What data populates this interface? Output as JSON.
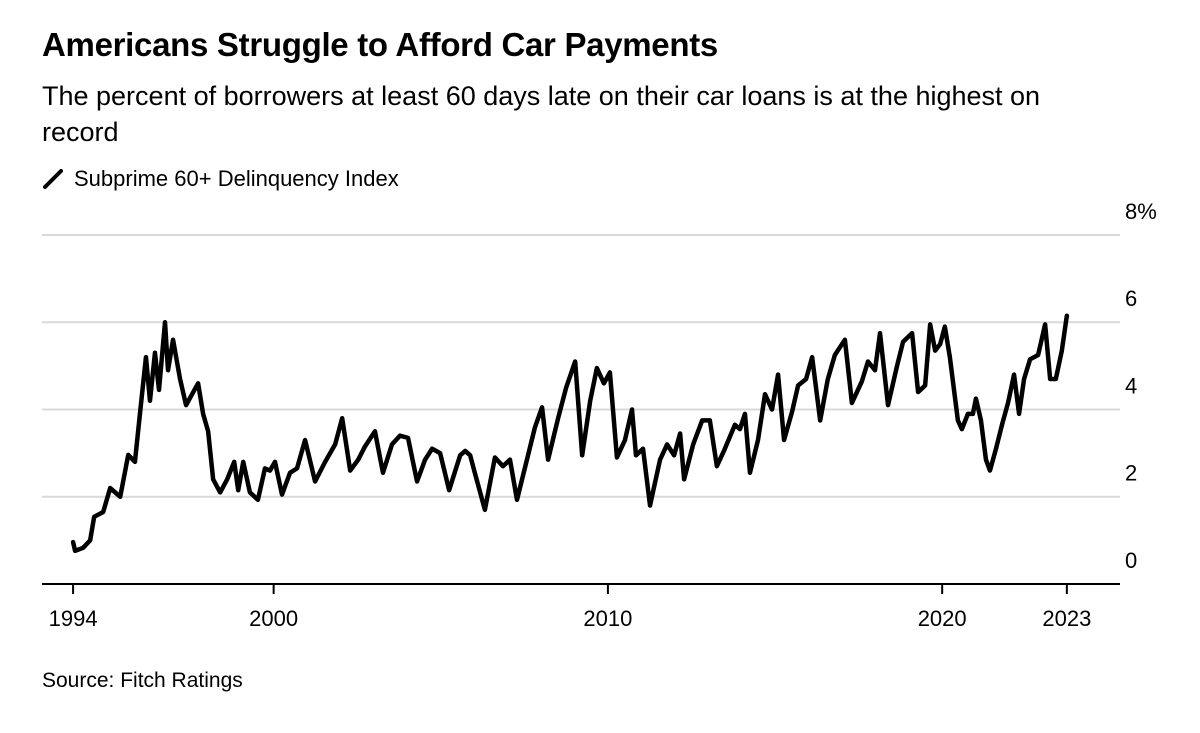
{
  "chart_data": {
    "type": "line",
    "title": "Americans Struggle to Afford Car Payments",
    "subtitle": "The percent of borrowers at least 60 days late on their car loans is at the highest on record",
    "source": "Source: Fitch Ratings",
    "x": [
      1994.0,
      1994.06,
      1994.3,
      1994.51,
      1994.63,
      1994.9,
      1995.11,
      1995.41,
      1995.65,
      1995.85,
      1996.0,
      1996.18,
      1996.3,
      1996.45,
      1996.57,
      1996.75,
      1996.84,
      1996.99,
      1997.2,
      1997.38,
      1997.74,
      1997.89,
      1998.04,
      1998.19,
      1998.4,
      1998.61,
      1998.82,
      1998.94,
      1999.09,
      1999.29,
      1999.53,
      1999.74,
      1999.89,
      2000.04,
      2000.25,
      2000.49,
      2000.7,
      2000.94,
      2001.24,
      2001.54,
      2001.84,
      2002.05,
      2002.29,
      2002.53,
      2002.73,
      2003.03,
      2003.27,
      2003.54,
      2003.78,
      2004.02,
      2004.29,
      2004.53,
      2004.74,
      2004.98,
      2005.25,
      2005.58,
      2005.73,
      2005.88,
      2006.0,
      2006.32,
      2006.62,
      2006.86,
      2007.07,
      2007.28,
      2007.61,
      2007.82,
      2008.03,
      2008.21,
      2008.51,
      2008.75,
      2009.02,
      2009.23,
      2009.47,
      2009.67,
      2009.88,
      2010.06,
      2010.27,
      2010.51,
      2010.72,
      2010.84,
      2011.05,
      2011.26,
      2011.56,
      2011.77,
      2011.98,
      2012.16,
      2012.28,
      2012.55,
      2012.82,
      2013.05,
      2013.26,
      2013.47,
      2013.8,
      2013.95,
      2014.1,
      2014.25,
      2014.49,
      2014.7,
      2014.91,
      2015.09,
      2015.27,
      2015.51,
      2015.69,
      2015.93,
      2016.11,
      2016.35,
      2016.58,
      2016.79,
      2017.09,
      2017.3,
      2017.6,
      2017.78,
      2017.99,
      2018.14,
      2018.38,
      2018.65,
      2018.83,
      2019.1,
      2019.28,
      2019.49,
      2019.64,
      2019.79,
      2019.94,
      2020.08,
      2020.23,
      2020.47,
      2020.59,
      2020.77,
      2020.92,
      2021.01,
      2021.16,
      2021.31,
      2021.43,
      2021.61,
      2021.79,
      2021.97,
      2022.15,
      2022.3,
      2022.45,
      2022.63,
      2022.87,
      2023.08,
      2023.23,
      2023.4,
      2023.58,
      2023.73
    ],
    "series": [
      {
        "name": "Subprime 60+ Delinquency Index",
        "color": "#000000",
        "values": [
          0.96,
          0.76,
          0.83,
          1.0,
          1.54,
          1.65,
          2.2,
          2.0,
          2.96,
          2.8,
          3.9,
          5.2,
          4.2,
          5.3,
          4.45,
          6.0,
          4.9,
          5.6,
          4.7,
          4.1,
          4.6,
          3.9,
          3.5,
          2.4,
          2.1,
          2.4,
          2.8,
          2.15,
          2.8,
          2.1,
          1.93,
          2.65,
          2.6,
          2.8,
          2.05,
          2.55,
          2.65,
          3.3,
          2.35,
          2.8,
          3.2,
          3.8,
          2.6,
          2.85,
          3.15,
          3.5,
          2.55,
          3.2,
          3.4,
          3.35,
          2.35,
          2.85,
          3.1,
          3.0,
          2.15,
          2.95,
          3.05,
          2.95,
          2.6,
          1.7,
          2.9,
          2.7,
          2.85,
          1.93,
          2.95,
          3.6,
          4.05,
          2.85,
          3.8,
          4.5,
          5.1,
          2.95,
          4.2,
          4.95,
          4.6,
          4.85,
          2.9,
          3.3,
          4.0,
          2.95,
          3.1,
          1.8,
          2.85,
          3.2,
          2.95,
          3.45,
          2.4,
          3.2,
          3.75,
          3.75,
          2.7,
          3.05,
          3.65,
          3.55,
          3.9,
          2.55,
          3.3,
          4.35,
          4.0,
          4.8,
          3.3,
          3.95,
          4.55,
          4.7,
          5.2,
          3.75,
          4.7,
          5.25,
          5.6,
          4.15,
          4.65,
          5.1,
          4.9,
          5.75,
          4.1,
          5.0,
          5.55,
          5.75,
          4.4,
          4.55,
          5.95,
          5.35,
          5.5,
          5.9,
          5.2,
          3.75,
          3.55,
          3.9,
          3.9,
          4.25,
          3.75,
          2.85,
          2.6,
          3.1,
          3.65,
          4.15,
          4.8,
          3.9,
          4.7,
          5.15,
          5.25,
          5.95,
          4.7,
          4.7,
          5.35,
          6.15
        ]
      }
    ],
    "xlim": [
      1993.07,
      2025.32
    ],
    "xticks": [
      1994,
      2000,
      2010,
      2020,
      {
        "value": 2023.73,
        "label": "2023"
      }
    ],
    "ylim": [
      0,
      8
    ],
    "yticks": [
      0,
      2,
      4,
      6,
      {
        "value": 8,
        "label": "8%"
      }
    ],
    "grid": true
  }
}
